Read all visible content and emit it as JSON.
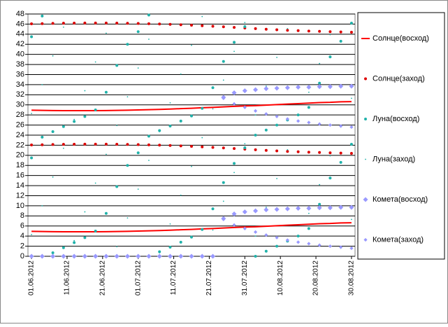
{
  "chart_data": {
    "type": "scatter",
    "x": [
      "01.06.2012",
      "04.06.2012",
      "07.06.2012",
      "10.06.2012",
      "13.06.2012",
      "16.06.2012",
      "19.06.2012",
      "22.06.2012",
      "25.06.2012",
      "28.06.2012",
      "01.07.2012",
      "04.07.2012",
      "07.07.2012",
      "10.07.2012",
      "13.07.2012",
      "16.07.2012",
      "19.07.2012",
      "22.07.2012",
      "25.07.2012",
      "28.07.2012",
      "31.07.2012",
      "03.08.2012",
      "06.08.2012",
      "09.08.2012",
      "12.08.2012",
      "15.08.2012",
      "18.08.2012",
      "21.08.2012",
      "24.08.2012",
      "27.08.2012",
      "30.08.2012"
    ],
    "xlim": [
      "31.05.2012",
      "31.08.2012"
    ],
    "xticks": [
      "01.06.2012",
      "11.06.2012",
      "21.06.2012",
      "01.07.2012",
      "11.07.2012",
      "21.07.2012",
      "31.07.2012",
      "10.08.2012",
      "20.08.2012",
      "30.08.2012"
    ],
    "ylim": [
      0,
      48
    ],
    "yticks": [
      0,
      2,
      4,
      6,
      8,
      10,
      12,
      14,
      16,
      18,
      20,
      22,
      24,
      26,
      28,
      30,
      32,
      34,
      36,
      38,
      40,
      42,
      44,
      46,
      48
    ],
    "grid": true,
    "legend": "right",
    "series": [
      {
        "name": "Солнце(восход)",
        "color": "#ff0000",
        "marker": "line",
        "values": [
          [
            4.95,
            28.95
          ],
          [
            4.9,
            28.9
          ],
          [
            4.88,
            28.88
          ],
          [
            4.86,
            28.86
          ],
          [
            4.85,
            28.85
          ],
          [
            4.85,
            28.85
          ],
          [
            4.86,
            28.86
          ],
          [
            4.88,
            28.88
          ],
          [
            4.9,
            28.9
          ],
          [
            4.95,
            28.95
          ],
          [
            5.0,
            29.0
          ],
          [
            5.05,
            29.05
          ],
          [
            5.1,
            29.1
          ],
          [
            5.17,
            29.17
          ],
          [
            5.25,
            29.25
          ],
          [
            5.33,
            29.33
          ],
          [
            5.42,
            29.42
          ],
          [
            5.5,
            29.5
          ],
          [
            5.6,
            29.6
          ],
          [
            5.7,
            29.7
          ],
          [
            5.8,
            29.8
          ],
          [
            5.85,
            29.85
          ],
          [
            5.95,
            29.95
          ],
          [
            6.05,
            30.05
          ],
          [
            6.15,
            30.15
          ],
          [
            6.25,
            30.25
          ],
          [
            6.35,
            30.35
          ],
          [
            6.45,
            30.45
          ],
          [
            6.5,
            30.5
          ],
          [
            6.6,
            30.6
          ],
          [
            6.65,
            30.65
          ]
        ]
      },
      {
        "name": "Солнце(заход)",
        "color": "#dd0000",
        "marker": "dot",
        "values": [
          [
            22.05,
            46.05
          ],
          [
            22.1,
            46.1
          ],
          [
            22.15,
            46.15
          ],
          [
            22.18,
            46.18
          ],
          [
            22.2,
            46.2
          ],
          [
            22.22,
            46.22
          ],
          [
            22.22,
            46.22
          ],
          [
            22.22,
            46.22
          ],
          [
            22.2,
            46.2
          ],
          [
            22.17,
            46.17
          ],
          [
            22.13,
            46.13
          ],
          [
            22.08,
            46.08
          ],
          [
            22.02,
            46.02
          ],
          [
            21.95,
            45.95
          ],
          [
            21.87,
            45.87
          ],
          [
            21.78,
            45.78
          ],
          [
            21.68,
            45.68
          ],
          [
            21.57,
            45.57
          ],
          [
            21.46,
            45.46
          ],
          [
            21.35,
            45.35
          ],
          [
            21.23,
            45.23
          ],
          [
            21.11,
            45.11
          ],
          [
            20.99,
            44.99
          ],
          [
            20.88,
            44.88
          ],
          [
            20.78,
            44.78
          ],
          [
            20.7,
            44.7
          ],
          [
            20.62,
            44.62
          ],
          [
            20.56,
            44.56
          ],
          [
            20.5,
            44.5
          ],
          [
            20.45,
            44.45
          ],
          [
            20.4,
            44.4
          ]
        ]
      },
      {
        "name": "Луна(восход)",
        "color": "#20b2aa",
        "marker": "dot",
        "values": [
          [
            19.5,
            43.5
          ],
          [
            23.6,
            47.6
          ],
          [
            0.7,
            24.7
          ],
          [
            1.7,
            25.7
          ],
          [
            2.7,
            26.7
          ],
          [
            3.7,
            27.7
          ],
          [
            5.0,
            29.0
          ],
          [
            8.5,
            32.5
          ],
          [
            13.8,
            37.8
          ],
          [
            18.0,
            42.0
          ],
          [
            20.5,
            44.5
          ],
          [
            23.8,
            47.8
          ],
          [
            0.9,
            24.9
          ],
          [
            1.8,
            25.8
          ],
          [
            2.8,
            26.8
          ],
          [
            3.8,
            27.8
          ],
          [
            5.3,
            29.3
          ],
          [
            9.4,
            33.4
          ],
          [
            14.6,
            38.6
          ],
          [
            18.4,
            42.4
          ],
          [
            21.5,
            45.5
          ],
          [
            0,
            24
          ],
          [
            1.0,
            25.0
          ],
          [
            2.0,
            26.0
          ],
          [
            3.0,
            27.0
          ],
          [
            4.0,
            28.0
          ],
          [
            5.5,
            29.5
          ],
          [
            10.3,
            34.3
          ],
          [
            15.5,
            39.5
          ],
          [
            18.6,
            42.6
          ],
          [
            22.2,
            46.2
          ]
        ]
      },
      {
        "name": "Луна(заход)",
        "color": "#20b2aa",
        "marker": "small-dot",
        "values": [
          [
            4.3,
            28.3
          ],
          [
            10.0,
            34.0
          ],
          [
            15.7,
            39.7
          ],
          [
            21.4,
            45.4
          ],
          [
            3.1,
            27.1
          ],
          [
            8.8,
            32.8
          ],
          [
            14.5,
            38.5
          ],
          [
            20.2,
            44.2
          ],
          [
            1.9,
            25.9
          ],
          [
            7.6,
            31.6
          ],
          [
            13.3,
            37.3
          ],
          [
            19.0,
            43.0
          ],
          [
            0.7,
            24.7
          ],
          [
            6.4,
            30.4
          ],
          [
            12.1,
            36.1
          ],
          [
            17.8,
            41.8
          ],
          [
            23.5,
            47.5
          ],
          [
            5.2,
            29.2
          ],
          [
            10.9,
            34.9
          ],
          [
            16.6,
            40.6
          ],
          [
            22.3,
            46.3
          ],
          [
            4.0,
            28.0
          ],
          [
            9.7,
            33.7
          ],
          [
            15.4,
            39.4
          ],
          [
            21.1,
            45.1
          ],
          [
            2.8,
            26.8
          ],
          [
            8.5,
            32.5
          ],
          [
            14.2,
            38.2
          ],
          [
            19.9,
            43.9
          ],
          [
            1.6,
            25.6
          ],
          [
            7.3,
            31.3
          ]
        ]
      },
      {
        "name": "Комета(восход)",
        "color": "#9999ff",
        "marker": "diamond",
        "values": [
          [
            0
          ],
          [
            0
          ],
          [
            0
          ],
          [
            0
          ],
          [
            0
          ],
          [
            0
          ],
          [
            0
          ],
          [
            0
          ],
          [
            0
          ],
          [
            0
          ],
          [
            0
          ],
          [
            0
          ],
          [
            0
          ],
          [
            0
          ],
          [
            0
          ],
          [
            0
          ],
          [
            0
          ],
          [
            0
          ],
          [
            7.5,
            31.5
          ],
          [
            8.4,
            32.4
          ],
          [
            8.8,
            32.8
          ],
          [
            9.0,
            33.0
          ],
          [
            9.2,
            33.2
          ],
          [
            9.3,
            33.3
          ],
          [
            9.4,
            33.4
          ],
          [
            9.5,
            33.5
          ],
          [
            9.5,
            33.5
          ],
          [
            9.6,
            33.6
          ],
          [
            9.6,
            33.6
          ],
          [
            9.7,
            33.7
          ],
          [
            9.7,
            33.7
          ]
        ]
      },
      {
        "name": "Комета(заход)",
        "color": "#9999ff",
        "marker": "small-diamond",
        "values": [
          [
            0
          ],
          [
            0
          ],
          [
            0
          ],
          [
            0
          ],
          [
            0
          ],
          [
            0
          ],
          [
            0
          ],
          [
            0
          ],
          [
            0
          ],
          [
            0
          ],
          [
            0
          ],
          [
            0
          ],
          [
            0
          ],
          [
            0
          ],
          [
            0
          ],
          [
            0
          ],
          [
            0
          ],
          [
            0
          ],
          [
            7.3,
            31.3
          ],
          [
            6.2,
            30.2
          ],
          [
            5.5,
            29.5
          ],
          [
            4.8,
            28.8
          ],
          [
            4.2,
            28.2
          ],
          [
            3.7,
            27.7
          ],
          [
            3.2,
            27.2
          ],
          [
            2.8,
            26.8
          ],
          [
            2.5,
            26.5
          ],
          [
            2.2,
            26.2
          ],
          [
            2.0,
            26.0
          ],
          [
            1.8,
            25.8
          ],
          [
            1.6,
            25.6
          ]
        ]
      }
    ]
  }
}
